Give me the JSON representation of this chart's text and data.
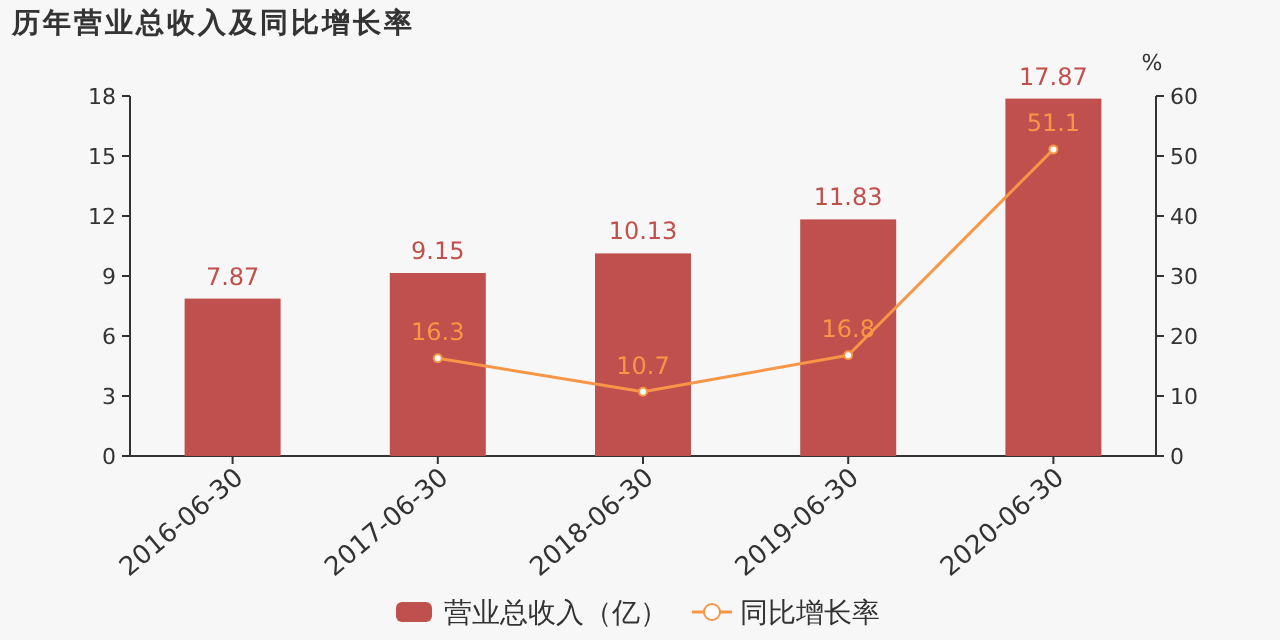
{
  "chart_data": {
    "type": "bar",
    "title": "历年营业总收入及同比增长率",
    "categories": [
      "2016-06-30",
      "2017-06-30",
      "2018-06-30",
      "2019-06-30",
      "2020-06-30"
    ],
    "series": [
      {
        "name": "营业总收入（亿）",
        "color": "#c0504d",
        "values": [
          7.87,
          9.15,
          10.13,
          11.83,
          17.87
        ]
      },
      {
        "name": "同比增长率",
        "type": "line",
        "axis": "y2",
        "color": "#f79646",
        "values": [
          null,
          16.3,
          10.7,
          16.8,
          51.1
        ]
      }
    ],
    "data_labels": true,
    "y2label": "%",
    "ylim": [
      0,
      18
    ],
    "yticks": [
      0,
      3,
      6,
      9,
      12,
      15,
      18
    ],
    "y2lim": [
      0,
      60
    ],
    "y2ticks": [
      0,
      10,
      20,
      30,
      40,
      50,
      60
    ],
    "legend": "bottom",
    "marker": "circle"
  }
}
